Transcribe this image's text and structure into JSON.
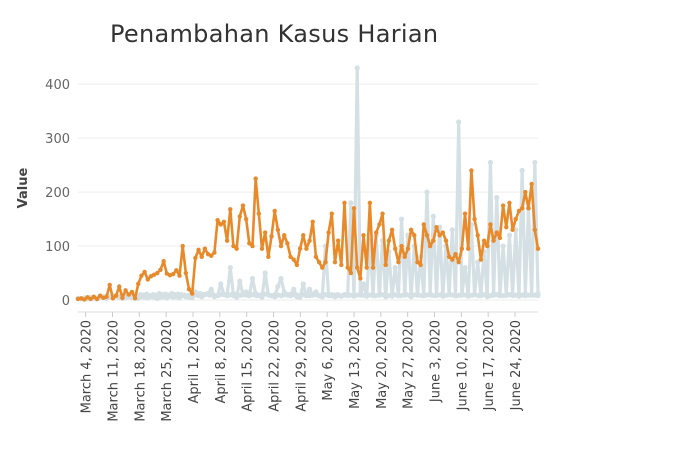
{
  "chart_data": {
    "type": "line",
    "title": "Penambahan Kasus Harian",
    "ylabel": "Value",
    "xlabel": "",
    "ylim": [
      0,
      430
    ],
    "yticks": [
      0,
      100,
      200,
      300,
      400
    ],
    "x_start": "2020-03-02",
    "x_end": "2020-06-30",
    "x_tick_labels": [
      "March 4, 2020",
      "March 11, 2020",
      "March 18, 2020",
      "March 25, 2020",
      "April 1, 2020",
      "April 8, 2020",
      "April 15, 2020",
      "April 22, 2020",
      "April 29, 2020",
      "May 6, 2020",
      "May 13, 2020",
      "May 20, 2020",
      "May 27, 2020",
      "June 3, 2020",
      "June 10, 2020",
      "June 17, 2020",
      "June 24, 2020"
    ],
    "grid": true,
    "legend": "none",
    "series": [
      {
        "color": "#e8892a",
        "values": [
          2,
          3,
          1,
          5,
          2,
          6,
          2,
          8,
          4,
          6,
          28,
          3,
          8,
          25,
          4,
          18,
          10,
          15,
          3,
          30,
          45,
          52,
          38,
          44,
          47,
          50,
          56,
          72,
          49,
          46,
          48,
          55,
          45,
          100,
          50,
          20,
          12,
          78,
          93,
          80,
          95,
          85,
          82,
          88,
          148,
          140,
          145,
          110,
          168,
          100,
          95,
          155,
          175,
          150,
          105,
          100,
          225,
          160,
          95,
          125,
          80,
          118,
          165,
          130,
          100,
          120,
          105,
          80,
          75,
          65,
          95,
          120,
          95,
          110,
          145,
          80,
          70,
          60,
          70,
          125,
          160,
          70,
          110,
          65,
          180,
          60,
          50,
          170,
          60,
          40,
          120,
          60,
          180,
          60,
          125,
          140,
          160,
          65,
          110,
          130,
          95,
          70,
          100,
          80,
          95,
          130,
          120,
          70,
          65,
          140,
          120,
          100,
          110,
          135,
          120,
          125,
          110,
          80,
          75,
          85,
          70,
          95,
          160,
          95,
          240,
          150,
          120,
          75,
          110,
          100,
          140,
          110,
          125,
          115,
          175,
          135,
          180,
          130,
          150,
          165,
          170,
          200,
          170,
          215,
          130,
          95
        ],
        "x_range": [
          "2020-03-02",
          "2020-06-30"
        ]
      },
      {
        "color": "#d4e0e3",
        "values": [
          3,
          2,
          4,
          2,
          3,
          5,
          2,
          4,
          6,
          3,
          5,
          4,
          6,
          5,
          3,
          4,
          6,
          4,
          5,
          3,
          6,
          5,
          4,
          6,
          5,
          3,
          5,
          6,
          4,
          7,
          5,
          6,
          4,
          8,
          6,
          5,
          4,
          15,
          8,
          6,
          10,
          12,
          20,
          6,
          8,
          30,
          10,
          8,
          60,
          8,
          5,
          35,
          10,
          15,
          8,
          40,
          12,
          8,
          5,
          50,
          10,
          8,
          6,
          25,
          40,
          15,
          10,
          8,
          20,
          6,
          5,
          30,
          8,
          20,
          10,
          15,
          8,
          6,
          100,
          8,
          10,
          6,
          8,
          7,
          10,
          8,
          180,
          7,
          430,
          9,
          30,
          7,
          110,
          8,
          120,
          9,
          110,
          6,
          90,
          7,
          60,
          8,
          150,
          9,
          120,
          6,
          100,
          9,
          80,
          8,
          200,
          10,
          155,
          9,
          135,
          7,
          100,
          10,
          130,
          8,
          330,
          9,
          60,
          7,
          140,
          10,
          70,
          8,
          90,
          6,
          255,
          12,
          190,
          8,
          100,
          9,
          120,
          10,
          130,
          7,
          240,
          12,
          170,
          9,
          255,
          12
        ],
        "x_range": [
          "2020-03-02",
          "2020-06-30"
        ]
      },
      {
        "color": "#d4e0e3",
        "values": [
          3,
          2,
          3,
          4,
          5,
          3,
          4,
          6,
          5,
          7,
          6,
          8,
          7,
          6,
          9,
          8,
          7,
          10,
          9,
          8,
          10,
          9,
          11,
          8,
          10,
          9,
          12,
          10,
          11,
          9,
          12,
          10,
          11,
          10,
          9,
          8,
          10,
          11,
          9,
          12,
          10,
          11,
          9,
          10,
          8,
          9,
          11,
          10,
          9,
          10,
          11,
          8,
          9,
          10,
          9,
          11,
          10,
          8,
          9,
          10,
          11,
          9,
          8,
          10,
          9,
          8,
          10,
          9,
          11,
          10,
          9,
          8,
          10,
          9,
          8,
          9,
          10,
          8,
          9,
          10,
          9,
          8,
          9,
          10,
          8,
          9,
          10,
          9,
          8,
          9,
          10,
          9,
          8,
          9,
          10,
          8,
          9,
          10,
          9,
          8,
          9,
          10,
          9,
          8,
          9,
          10,
          8,
          9,
          10,
          9,
          8,
          9,
          10,
          9,
          8,
          9,
          10,
          8,
          9,
          10,
          9,
          8,
          9,
          10,
          9,
          8,
          9,
          10,
          8,
          9,
          10,
          9,
          8,
          9,
          10,
          9,
          8,
          9,
          10,
          8,
          9,
          10,
          9,
          8,
          9,
          10,
          9,
          8
        ],
        "x_range": [
          "2020-03-02",
          "2020-06-30"
        ]
      }
    ]
  }
}
